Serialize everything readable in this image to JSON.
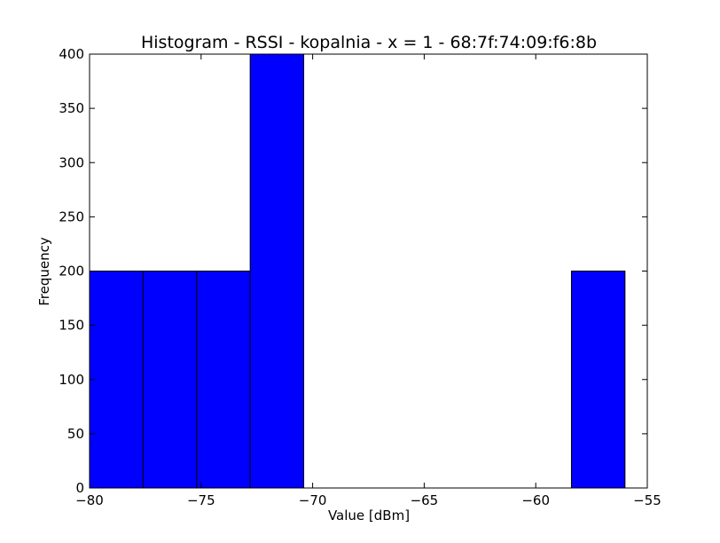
{
  "chart_data": {
    "type": "bar",
    "title": "Histogram - RSSI - kopalnia - x = 1 - 68:7f:74:09:f6:8b",
    "xlabel": "Value [dBm]",
    "ylabel": "Frequency",
    "xlim": [
      -80,
      -55
    ],
    "ylim": [
      0,
      400
    ],
    "xticks": [
      -80,
      -75,
      -70,
      -65,
      -60,
      -55
    ],
    "yticks": [
      0,
      50,
      100,
      150,
      200,
      250,
      300,
      350,
      400
    ],
    "grid": false,
    "bar_color": "#0000ff",
    "edge_color": "#000000",
    "bins": [
      {
        "start": -80.0,
        "end": -77.6,
        "value": 200
      },
      {
        "start": -77.6,
        "end": -75.2,
        "value": 200
      },
      {
        "start": -75.2,
        "end": -72.8,
        "value": 200
      },
      {
        "start": -72.8,
        "end": -70.4,
        "value": 400
      },
      {
        "start": -70.4,
        "end": -68.0,
        "value": 0
      },
      {
        "start": -68.0,
        "end": -65.6,
        "value": 0
      },
      {
        "start": -65.6,
        "end": -63.2,
        "value": 0
      },
      {
        "start": -63.2,
        "end": -60.8,
        "value": 0
      },
      {
        "start": -60.8,
        "end": -58.4,
        "value": 0
      },
      {
        "start": -58.4,
        "end": -56.0,
        "value": 200
      }
    ]
  }
}
